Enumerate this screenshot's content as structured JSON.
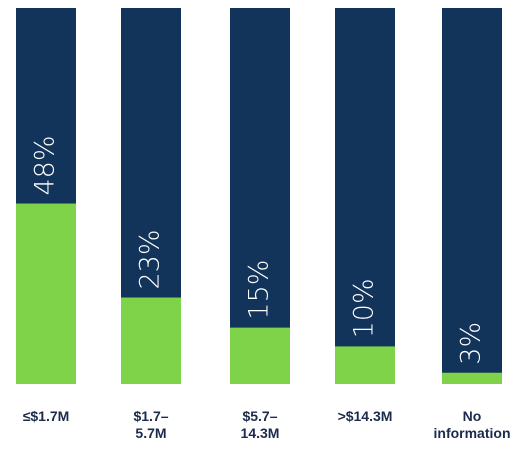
{
  "chart_data": {
    "type": "stacked-share-bar",
    "categories": [
      "≤$1.7M",
      "$1.7–5.7M",
      "$5.7–14.3M",
      ">$14.3M",
      "No information"
    ],
    "values": [
      48,
      23,
      15,
      10,
      3
    ],
    "value_labels": [
      "48%",
      "23%",
      "15%",
      "10%",
      "3%"
    ],
    "color": "#7ed348",
    "background_color": "#12335a",
    "ylim": [
      0,
      100
    ]
  }
}
